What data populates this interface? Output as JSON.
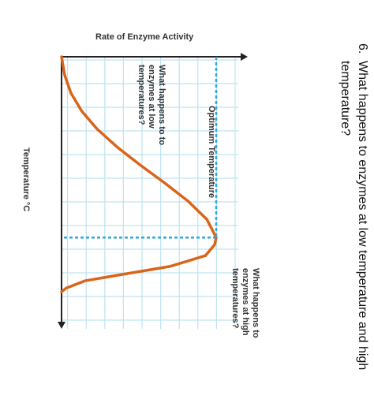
{
  "question": {
    "number": "6.",
    "line1": "What happens to enzymes at low temperature and high",
    "line2": "temperature?"
  },
  "colors": {
    "curve": "#d9651a",
    "grid": "#bfe3f2",
    "dashed": "#29a8e0",
    "axis": "#222222",
    "text": "#333333"
  },
  "chart_data": {
    "type": "line",
    "orientation": "rotated 90 degrees clockwise",
    "title": "Rate of Enzyme Activity",
    "xlabel": "Temperature °C",
    "ylabel": "",
    "grid": true,
    "legend": "none",
    "x": [
      0,
      5,
      10,
      15,
      20,
      25,
      30,
      35,
      40,
      45,
      50,
      52,
      55,
      58,
      60,
      62,
      64,
      65
    ],
    "y": [
      0.0,
      0.02,
      0.06,
      0.13,
      0.23,
      0.36,
      0.51,
      0.67,
      0.82,
      0.94,
      1.0,
      0.99,
      0.93,
      0.7,
      0.42,
      0.15,
      0.03,
      0.0
    ],
    "optimum": {
      "x": 50,
      "y": 1.0
    },
    "annotations": {
      "low": [
        "What happens to to",
        "enzymes at low",
        "temperatures?"
      ],
      "optimum": "Optimum Temperature",
      "high": [
        "What happens to",
        "enzymes at high",
        "temperatures?"
      ]
    }
  }
}
